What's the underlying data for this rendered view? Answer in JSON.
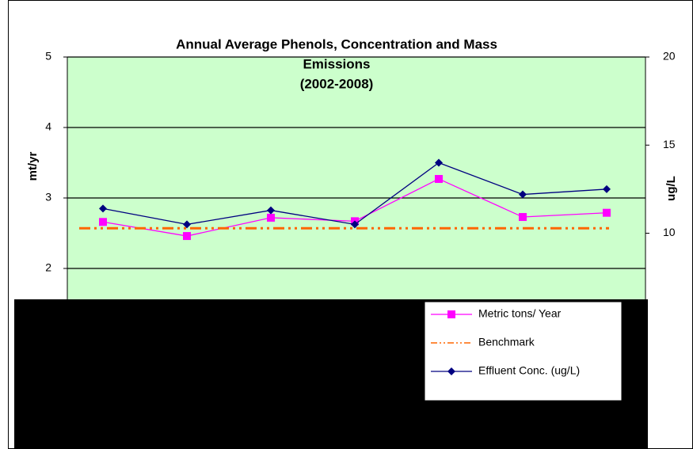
{
  "chart_data": {
    "type": "line",
    "title": [
      "Annual Average Phenols, Concentration and Mass",
      "Emissions",
      "(2002-2008)"
    ],
    "y_label": "mt/yr",
    "y2_label": "ug/L",
    "categories": [
      null,
      null,
      null,
      null,
      null,
      null,
      null
    ],
    "series": [
      {
        "name": "Metric tons/ Year",
        "color": "#ff00ff",
        "marker": "square",
        "values": [
          2.66,
          2.46,
          2.72,
          2.67,
          3.27,
          2.73,
          2.79
        ]
      },
      {
        "name": "Benchmark",
        "color": "#ff6600",
        "marker": "none",
        "dash": "dash-dot",
        "values": [
          2.57,
          2.57,
          2.57,
          2.57,
          2.57,
          2.57,
          2.57
        ]
      },
      {
        "name": "Effluent Conc. (ug/L)",
        "color": "#000080",
        "marker": "diamond",
        "axis": "y2",
        "values": [
          11.4,
          10.5,
          11.3,
          10.5,
          14.0,
          12.2,
          12.5
        ]
      }
    ],
    "ylim": [
      0,
      5
    ],
    "yticks": [
      2,
      3,
      4,
      5
    ],
    "y2lim": [
      0,
      20
    ],
    "y2ticks": [
      10,
      15,
      20
    ],
    "grid": true,
    "legend": "lower right",
    "background": "#ccffcc"
  }
}
